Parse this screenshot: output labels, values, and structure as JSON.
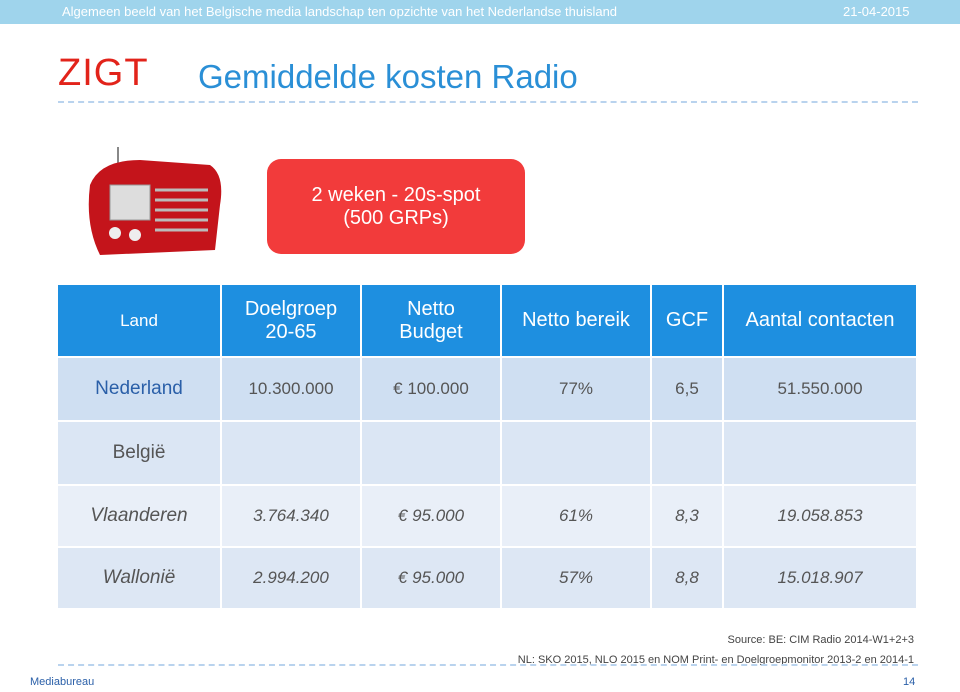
{
  "header": {
    "subject": "Algemeen beeld van het Belgische media landschap ten opzichte van het Nederlandse thuisland",
    "date": "21-04-2015",
    "logo": "ZIGT",
    "title": "Gemiddelde kosten Radio"
  },
  "callout": {
    "lines": [
      "2 weken - 20s-spot",
      "(500 GRPs)"
    ]
  },
  "table": {
    "columns": [
      "Land",
      "Doelgroep\n20-65",
      "Netto\nBudget",
      "Netto bereik",
      "GCF",
      "Aantal contacten"
    ],
    "rows": [
      [
        "Nederland",
        "10.300.000",
        "€ 100.000",
        "77%",
        "6,5",
        "51.550.000"
      ],
      [
        "België",
        "",
        "",
        "",
        "",
        ""
      ],
      [
        "Vlaanderen",
        "3.764.340",
        "€ 95.000",
        "61%",
        "8,3",
        "19.058.853"
      ],
      [
        "Wallonië",
        "2.994.200",
        "€ 95.000",
        "57%",
        "8,8",
        "15.018.907"
      ]
    ]
  },
  "footer": {
    "sources": [
      "Source: BE: CIM Radio 2014-W1+2+3",
      "NL: SKO 2015, NLO 2015 en NOM Print- en Doelgroepmonitor  2013-2 en 2014-1"
    ],
    "company": "Mediabureau",
    "page": "14"
  }
}
